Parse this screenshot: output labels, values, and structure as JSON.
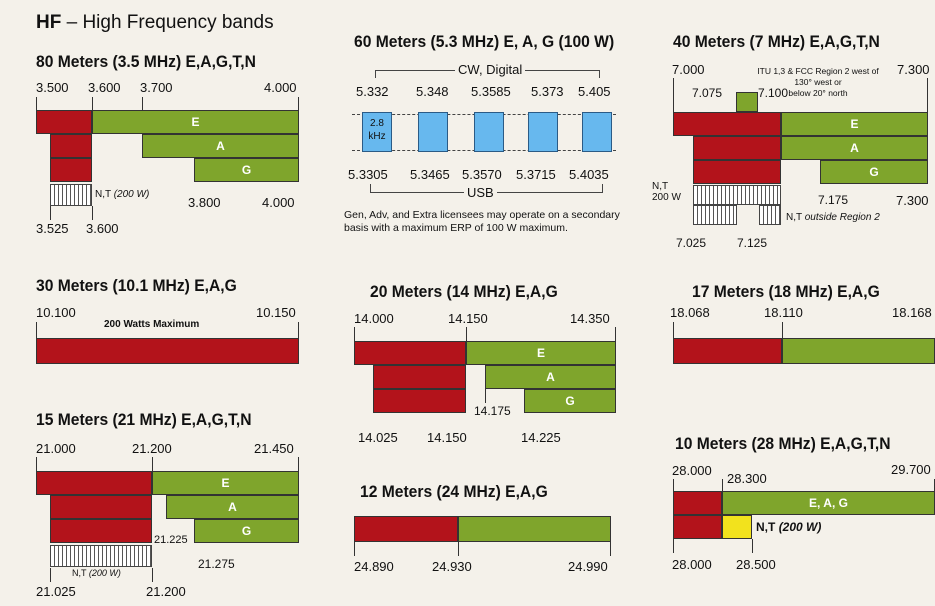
{
  "header": {
    "title_prefix": "HF",
    "title_rest": " – High Frequency bands"
  },
  "m80": {
    "title": "80 Meters (3.5 MHz)  E,A,G,T,N",
    "top": [
      "3.500",
      "3.600",
      "3.700",
      "4.000"
    ],
    "bars": {
      "e": "E",
      "a": "A",
      "g": "G"
    },
    "nt": "N,T",
    "nt_w": "(200 W)",
    "mid": [
      "3.800",
      "4.000"
    ],
    "bottom": [
      "3.525",
      "3.600"
    ]
  },
  "m60": {
    "title": "60 Meters (5.3 MHz) E, A, G (100 W)",
    "cw_label": "CW, Digital",
    "top": [
      "5.332",
      "5.348",
      "5.3585",
      "5.373",
      "5.405"
    ],
    "box_label_1": "2.8",
    "box_label_2": "kHz",
    "bottom": [
      "5.3305",
      "5.3465",
      "5.3570",
      "5.3715",
      "5.4035"
    ],
    "usb_label": "USB",
    "note": "Gen, Adv, and Extra licensees may operate on a secondary basis with a maximum ERP of 100 W maximum."
  },
  "m40": {
    "title": "40 Meters (7 MHz)  E,A,G,T,N",
    "top_left": "7.000",
    "top_right": "7.300",
    "itu_note": "ITU 1,3 & FCC Region 2 west of",
    "itu_note_2": "130° west or",
    "itu_note_3": "below 20° north",
    "f7075": "7.075",
    "f7100": "7.100",
    "bars": {
      "e": "E",
      "a": "A",
      "g": "G"
    },
    "nt": "N,T",
    "nt_w": "200 W",
    "g_left": "7.175",
    "g_right": "7.300",
    "nt_outside": "N,T",
    "nt_outside_2": "outside Region 2",
    "bottom": [
      "7.025",
      "7.125"
    ]
  },
  "m30": {
    "title": "30 Meters (10.1 MHz)  E,A,G",
    "left": "10.100",
    "right": "10.150",
    "label": "200 Watts Maximum"
  },
  "m20": {
    "title": "20 Meters (14 MHz)  E,A,G",
    "top": [
      "14.000",
      "14.150",
      "14.350"
    ],
    "bars": {
      "e": "E",
      "a": "A",
      "g": "G"
    },
    "mid": "14.175",
    "bottom": [
      "14.025",
      "14.150",
      "14.225"
    ]
  },
  "m17": {
    "title": "17 Meters (18 MHz)  E,A,G",
    "top": [
      "18.068",
      "18.110",
      "18.168"
    ]
  },
  "m15": {
    "title": "15 Meters (21 MHz)  E,A,G,T,N",
    "top": [
      "21.000",
      "21.200",
      "21.450"
    ],
    "bars": {
      "e": "E",
      "a": "A",
      "g": "G"
    },
    "f21225": "21.225",
    "f21275": "21.275",
    "nt": "N,T",
    "nt_w": "(200 W)",
    "bottom": [
      "21.025",
      "21.200"
    ]
  },
  "m12": {
    "title": "12 Meters (24 MHz)  E,A,G",
    "bottom": [
      "24.890",
      "24.930",
      "24.990"
    ]
  },
  "m10": {
    "title": "10 Meters (28 MHz)  E,A,G,T,N",
    "top_left": "28.000",
    "top_mid": "28.300",
    "top_right": "29.700",
    "eag": "E, A, G",
    "nt": "N,T",
    "nt_w": "(200 W)",
    "bottom": [
      "28.000",
      "28.500"
    ]
  },
  "colors": {
    "extra_general_red": "#b3131b",
    "green": "#7fa52c",
    "blue": "#67b8ee",
    "yellow": "#f2e21d"
  }
}
